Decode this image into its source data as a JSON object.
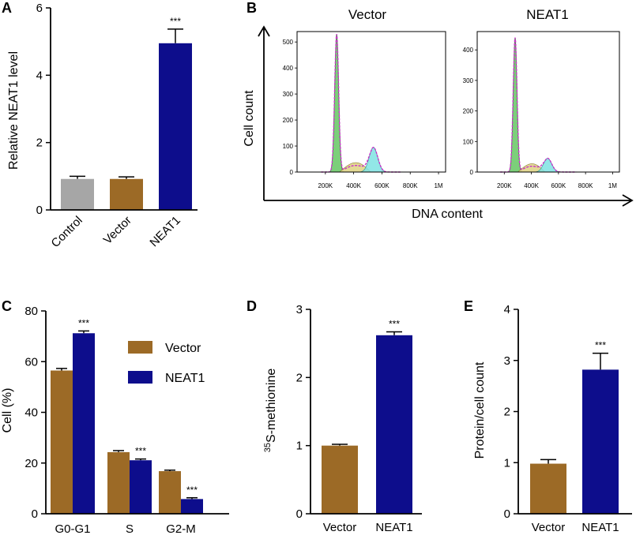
{
  "figure": {
    "panel_letters": [
      "A",
      "B",
      "C",
      "D",
      "E"
    ]
  },
  "colors": {
    "control": "#a6a6a6",
    "vector": "#9c6a26",
    "neat1": "#0d0d8c",
    "flow_g1": "#7ccf7a",
    "flow_s": "#e0d58a",
    "flow_g2": "#7fe3e3",
    "flow_fit": "#c832c8"
  },
  "chart_data": [
    {
      "panel": "A",
      "type": "bar",
      "categories": [
        "Control",
        "Vector",
        "NEAT1"
      ],
      "values": [
        0.92,
        0.92,
        4.95
      ],
      "errors": [
        0.08,
        0.06,
        0.42
      ],
      "colors": [
        "#a6a6a6",
        "#9c6a26",
        "#0d0d8c"
      ],
      "significance": [
        "",
        "",
        "***"
      ],
      "ylabel": "Relative NEAT1 level",
      "ylim": [
        0,
        6
      ],
      "yticks": [
        0,
        2,
        4,
        6
      ]
    },
    {
      "panel": "B",
      "type": "area",
      "subtitles": [
        "Vector",
        "NEAT1"
      ],
      "xlabel": "DNA content",
      "ylabel": "Cell count",
      "xticks": [
        "200K",
        "400K",
        "600K",
        "800K",
        "1M"
      ],
      "xtick_values": [
        200000,
        400000,
        600000,
        800000,
        1000000
      ],
      "xlim": [
        0,
        1050000
      ],
      "histograms": [
        {
          "name": "Vector",
          "yticks": [
            0,
            100,
            200,
            300,
            400,
            500
          ],
          "ylim": [
            0,
            540
          ],
          "g1_peak": {
            "x": 280000,
            "height": 530
          },
          "s_phase": {
            "x_start": 300000,
            "x_end": 520000,
            "height": 40
          },
          "g2_peak": {
            "x": 540000,
            "height": 95
          }
        },
        {
          "name": "NEAT1",
          "yticks": [
            0,
            100,
            200,
            300,
            400
          ],
          "ylim": [
            0,
            460
          ],
          "g1_peak": {
            "x": 280000,
            "height": 440
          },
          "s_phase": {
            "x_start": 300000,
            "x_end": 500000,
            "height": 30
          },
          "g2_peak": {
            "x": 520000,
            "height": 45
          }
        }
      ]
    },
    {
      "panel": "C",
      "type": "bar",
      "categories": [
        "G0-G1",
        "S",
        "G2-M"
      ],
      "series": [
        {
          "name": "Vector",
          "values": [
            56.5,
            24.3,
            16.8
          ],
          "errors": [
            0.8,
            0.6,
            0.4
          ],
          "color": "#9c6a26"
        },
        {
          "name": "NEAT1",
          "values": [
            71.2,
            21.1,
            5.8
          ],
          "errors": [
            0.9,
            0.5,
            0.5
          ],
          "color": "#0d0d8c"
        }
      ],
      "significance": [
        "***",
        "***",
        "***"
      ],
      "ylabel": "Cell (%)",
      "ylim": [
        0,
        80
      ],
      "yticks": [
        0,
        20,
        40,
        60,
        80
      ],
      "legend_position": "top-right"
    },
    {
      "panel": "D",
      "type": "bar",
      "categories": [
        "Vector",
        "NEAT1"
      ],
      "values": [
        1.0,
        2.62
      ],
      "errors": [
        0.02,
        0.05
      ],
      "colors": [
        "#9c6a26",
        "#0d0d8c"
      ],
      "significance": [
        "",
        "***"
      ],
      "ylabel_sup": "35",
      "ylabel": "S-methionine",
      "ylim": [
        0,
        3
      ],
      "yticks": [
        0,
        1,
        2,
        3
      ]
    },
    {
      "panel": "E",
      "type": "bar",
      "categories": [
        "Vector",
        "NEAT1"
      ],
      "values": [
        0.98,
        2.82
      ],
      "errors": [
        0.08,
        0.32
      ],
      "colors": [
        "#9c6a26",
        "#0d0d8c"
      ],
      "significance": [
        "",
        "***"
      ],
      "ylabel": "Protein/cell count",
      "ylim": [
        0,
        4
      ],
      "yticks": [
        0,
        1,
        2,
        3,
        4
      ]
    }
  ]
}
